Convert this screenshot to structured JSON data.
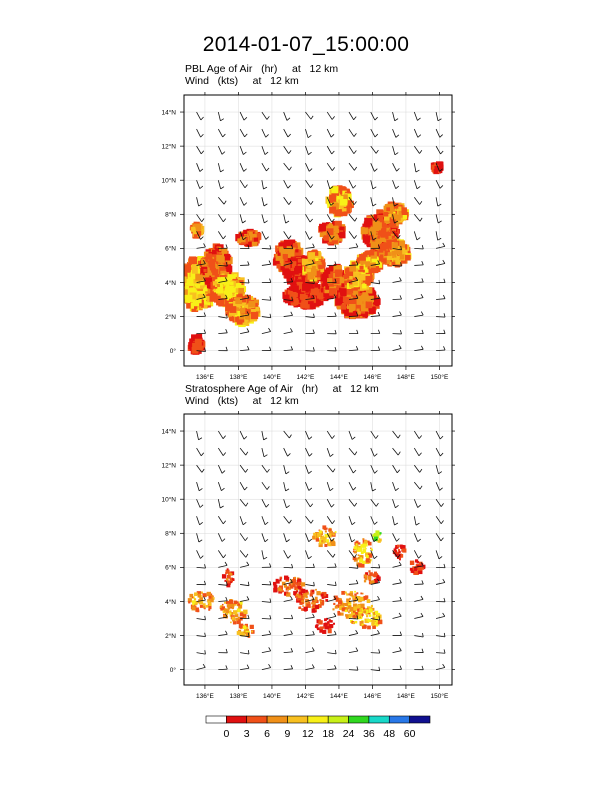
{
  "title": "2014-01-07_15:00:00",
  "panels": [
    {
      "id": "pbl",
      "line1": "PBL Age of Air   (hr)     at   12 km",
      "line2": "Wind   (kts)     at   12 km"
    },
    {
      "id": "strat",
      "line1": "Stratosphere Age of Air   (hr)     at   12 km",
      "line2": "Wind   (kts)     at   12 km"
    }
  ],
  "axes": {
    "lon_range": [
      134.75,
      150.75
    ],
    "lat_range": [
      -0.9,
      15.0
    ],
    "x_ticks": [
      {
        "v": 136,
        "label": "136°E"
      },
      {
        "v": 138,
        "label": "138°E"
      },
      {
        "v": 140,
        "label": "140°E"
      },
      {
        "v": 142,
        "label": "142°E"
      },
      {
        "v": 144,
        "label": "144°E"
      },
      {
        "v": 146,
        "label": "146°E"
      },
      {
        "v": 148,
        "label": "148°E"
      },
      {
        "v": 150,
        "label": "150°E"
      }
    ],
    "y_ticks": [
      {
        "v": 0,
        "label": "0°"
      },
      {
        "v": 2,
        "label": "2°N"
      },
      {
        "v": 4,
        "label": "4°N"
      },
      {
        "v": 6,
        "label": "6°N"
      },
      {
        "v": 8,
        "label": "8°N"
      },
      {
        "v": 10,
        "label": "10°N"
      },
      {
        "v": 12,
        "label": "12°N"
      },
      {
        "v": 14,
        "label": "14°N"
      }
    ]
  },
  "colorbar": {
    "labels": [
      "0",
      "3",
      "6",
      "9",
      "12",
      "18",
      "24",
      "36",
      "48",
      "60"
    ],
    "colors": [
      "#ffffff",
      "#e01010",
      "#f05018",
      "#f09018",
      "#f8c020",
      "#f8f018",
      "#c8f018",
      "#30d820",
      "#18d8c8",
      "#2878e8",
      "#101090"
    ]
  },
  "chart_data": [
    {
      "type": "heatmap",
      "title": "PBL Age of Air   (hr)     at   12 km",
      "units": "hr",
      "blobs": [
        {
          "lon": 135.6,
          "lat": 3.9,
          "rlon": 1.1,
          "rlat": 1.5,
          "val": 12
        },
        {
          "lon": 136.7,
          "lat": 4.9,
          "rlon": 0.8,
          "rlat": 1.2,
          "val": 6
        },
        {
          "lon": 137.4,
          "lat": 3.6,
          "rlon": 0.9,
          "rlat": 0.9,
          "val": 12
        },
        {
          "lon": 138.3,
          "lat": 2.4,
          "rlon": 0.9,
          "rlat": 0.8,
          "val": 9
        },
        {
          "lon": 135.5,
          "lat": 7.1,
          "rlon": 0.3,
          "rlat": 0.4,
          "val": 9
        },
        {
          "lon": 138.6,
          "lat": 6.6,
          "rlon": 0.6,
          "rlat": 0.4,
          "val": 6
        },
        {
          "lon": 135.5,
          "lat": 0.4,
          "rlon": 0.4,
          "rlat": 0.5,
          "val": 3
        },
        {
          "lon": 141.0,
          "lat": 5.5,
          "rlon": 0.8,
          "rlat": 0.9,
          "val": 6
        },
        {
          "lon": 141.9,
          "lat": 4.6,
          "rlon": 1.1,
          "rlat": 0.9,
          "val": 3
        },
        {
          "lon": 142.0,
          "lat": 3.2,
          "rlon": 1.2,
          "rlat": 0.7,
          "val": 3
        },
        {
          "lon": 142.5,
          "lat": 5.0,
          "rlon": 0.6,
          "rlat": 0.8,
          "val": 9
        },
        {
          "lon": 143.6,
          "lat": 6.9,
          "rlon": 0.7,
          "rlat": 0.6,
          "val": 6
        },
        {
          "lon": 144.1,
          "lat": 8.8,
          "rlon": 0.7,
          "rlat": 0.8,
          "val": 12
        },
        {
          "lon": 143.8,
          "lat": 4.0,
          "rlon": 0.8,
          "rlat": 0.9,
          "val": 6
        },
        {
          "lon": 145.1,
          "lat": 2.9,
          "rlon": 1.2,
          "rlat": 0.9,
          "val": 6
        },
        {
          "lon": 145.2,
          "lat": 4.4,
          "rlon": 0.8,
          "rlat": 0.8,
          "val": 9
        },
        {
          "lon": 146.5,
          "lat": 7.0,
          "rlon": 1.0,
          "rlat": 1.1,
          "val": 6
        },
        {
          "lon": 147.3,
          "lat": 5.7,
          "rlon": 0.9,
          "rlat": 0.7,
          "val": 9
        },
        {
          "lon": 147.4,
          "lat": 8.0,
          "rlon": 0.6,
          "rlat": 0.6,
          "val": 9
        },
        {
          "lon": 145.8,
          "lat": 5.2,
          "rlon": 0.7,
          "rlat": 0.6,
          "val": 12
        },
        {
          "lon": 149.9,
          "lat": 10.7,
          "rlon": 0.25,
          "rlat": 0.25,
          "val": 3
        }
      ]
    },
    {
      "type": "heatmap",
      "title": "Stratosphere Age of Air   (hr)     at   12 km",
      "units": "hr",
      "blobs": [
        {
          "lon": 135.8,
          "lat": 4.0,
          "rlon": 0.8,
          "rlat": 0.6,
          "val": 9
        },
        {
          "lon": 137.7,
          "lat": 3.4,
          "rlon": 0.8,
          "rlat": 0.7,
          "val": 9
        },
        {
          "lon": 138.4,
          "lat": 2.3,
          "rlon": 0.5,
          "rlat": 0.4,
          "val": 9
        },
        {
          "lon": 137.4,
          "lat": 5.4,
          "rlon": 0.3,
          "rlat": 0.5,
          "val": 6
        },
        {
          "lon": 141.0,
          "lat": 4.9,
          "rlon": 0.9,
          "rlat": 0.6,
          "val": 6
        },
        {
          "lon": 142.3,
          "lat": 4.1,
          "rlon": 1.0,
          "rlat": 0.7,
          "val": 6
        },
        {
          "lon": 143.2,
          "lat": 7.8,
          "rlon": 0.7,
          "rlat": 0.6,
          "val": 9
        },
        {
          "lon": 144.8,
          "lat": 3.8,
          "rlon": 1.2,
          "rlat": 0.8,
          "val": 9
        },
        {
          "lon": 145.6,
          "lat": 3.0,
          "rlon": 1.0,
          "rlat": 0.6,
          "val": 12
        },
        {
          "lon": 145.4,
          "lat": 6.9,
          "rlon": 0.6,
          "rlat": 0.8,
          "val": 12
        },
        {
          "lon": 145.9,
          "lat": 5.4,
          "rlon": 0.5,
          "rlat": 0.4,
          "val": 6
        },
        {
          "lon": 147.6,
          "lat": 6.8,
          "rlon": 0.4,
          "rlat": 0.5,
          "val": 3
        },
        {
          "lon": 148.7,
          "lat": 6.0,
          "rlon": 0.4,
          "rlat": 0.5,
          "val": 3
        },
        {
          "lon": 143.2,
          "lat": 2.6,
          "rlon": 0.6,
          "rlat": 0.4,
          "val": 3
        },
        {
          "lon": 146.3,
          "lat": 7.8,
          "rlon": 0.3,
          "rlat": 0.3,
          "val": 24
        }
      ]
    }
  ]
}
